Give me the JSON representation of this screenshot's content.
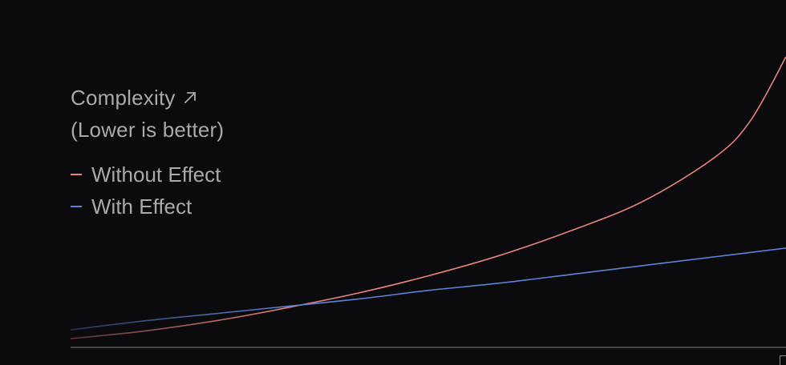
{
  "chart_data": {
    "type": "line",
    "title": "Complexity",
    "subtitle": "(Lower is better)",
    "x": [
      0,
      0.1,
      0.2,
      0.28,
      0.4,
      0.5,
      0.6,
      0.7,
      0.8,
      0.9,
      0.95,
      1.0
    ],
    "series": [
      {
        "name": "Without Effect",
        "color": "#e8827e",
        "values": [
          0.06,
          0.11,
          0.18,
          0.25,
          0.37,
          0.49,
          0.63,
          0.8,
          1.0,
          1.3,
          1.55,
          1.99
        ]
      },
      {
        "name": "With Effect",
        "color": "#5b82d6",
        "values": [
          0.12,
          0.18,
          0.23,
          0.27,
          0.33,
          0.39,
          0.44,
          0.5,
          0.56,
          0.62,
          0.65,
          0.68
        ]
      }
    ],
    "ylim": [
      0,
      2.05
    ],
    "xlim": [
      0,
      1.0
    ],
    "grid": false,
    "legend_position": "top-left"
  },
  "colors": {
    "background": "#0b0b0e",
    "text": "#a8a8ad",
    "axis": "#6b6b70"
  },
  "icons": {
    "title_arrow": "arrow-up-right-icon"
  }
}
